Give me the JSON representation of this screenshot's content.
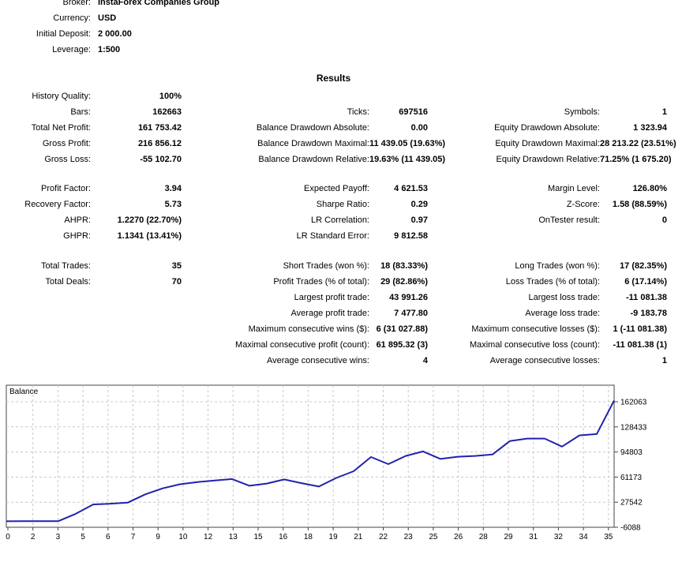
{
  "account": {
    "rows": [
      {
        "label": "Broker:",
        "value": "InstaForex Companies Group"
      },
      {
        "label": "Currency:",
        "value": "USD"
      },
      {
        "label": "Initial Deposit:",
        "value": "2 000.00"
      },
      {
        "label": "Leverage:",
        "value": "1:500"
      }
    ]
  },
  "results_title": "Results",
  "stats": {
    "blocks": [
      {
        "rows": [
          [
            {
              "l": "History Quality:",
              "v": "100%"
            },
            null,
            null
          ],
          [
            {
              "l": "Bars:",
              "v": "162663"
            },
            {
              "l": "Ticks:",
              "v": "697516"
            },
            {
              "l": "Symbols:",
              "v": "1"
            }
          ],
          [
            {
              "l": "Total Net Profit:",
              "v": "161 753.42"
            },
            {
              "l": "Balance Drawdown Absolute:",
              "v": "0.00"
            },
            {
              "l": "Equity Drawdown Absolute:",
              "v": "1 323.94"
            }
          ],
          [
            {
              "l": "Gross Profit:",
              "v": "216 856.12"
            },
            {
              "l": "Balance Drawdown Maximal:",
              "v": "11 439.05 (19.63%)"
            },
            {
              "l": "Equity Drawdown Maximal:",
              "v": "28 213.22 (23.51%)"
            }
          ],
          [
            {
              "l": "Gross Loss:",
              "v": "-55 102.70"
            },
            {
              "l": "Balance Drawdown Relative:",
              "v": "19.63% (11 439.05)"
            },
            {
              "l": "Equity Drawdown Relative:",
              "v": "71.25% (1 675.20)"
            }
          ]
        ]
      },
      {
        "rows": [
          [
            {
              "l": "Profit Factor:",
              "v": "3.94"
            },
            {
              "l": "Expected Payoff:",
              "v": "4 621.53"
            },
            {
              "l": "Margin Level:",
              "v": "126.80%"
            }
          ],
          [
            {
              "l": "Recovery Factor:",
              "v": "5.73"
            },
            {
              "l": "Sharpe Ratio:",
              "v": "0.29"
            },
            {
              "l": "Z-Score:",
              "v": "1.58 (88.59%)"
            }
          ],
          [
            {
              "l": "AHPR:",
              "v": "1.2270 (22.70%)"
            },
            {
              "l": "LR Correlation:",
              "v": "0.97"
            },
            {
              "l": "OnTester result:",
              "v": "0"
            }
          ],
          [
            {
              "l": "GHPR:",
              "v": "1.1341 (13.41%)"
            },
            {
              "l": "LR Standard Error:",
              "v": "9 812.58"
            },
            null
          ]
        ]
      },
      {
        "rows": [
          [
            {
              "l": "Total Trades:",
              "v": "35"
            },
            {
              "l": "Short Trades (won %):",
              "v": "18 (83.33%)"
            },
            {
              "l": "Long Trades (won %):",
              "v": "17 (82.35%)"
            }
          ],
          [
            {
              "l": "Total Deals:",
              "v": "70"
            },
            {
              "l": "Profit Trades (% of total):",
              "v": "29 (82.86%)"
            },
            {
              "l": "Loss Trades (% of total):",
              "v": "6 (17.14%)"
            }
          ],
          [
            null,
            {
              "l": "Largest profit trade:",
              "v": "43 991.26"
            },
            {
              "l": "Largest loss trade:",
              "v": "-11 081.38"
            }
          ],
          [
            null,
            {
              "l": "Average profit trade:",
              "v": "7 477.80"
            },
            {
              "l": "Average loss trade:",
              "v": "-9 183.78"
            }
          ],
          [
            null,
            {
              "l": "Maximum consecutive wins ($):",
              "v": "6 (31 027.88)"
            },
            {
              "l": "Maximum consecutive losses ($):",
              "v": "1 (-11 081.38)"
            }
          ],
          [
            null,
            {
              "l": "Maximal consecutive profit (count):",
              "v": "61 895.32 (3)"
            },
            {
              "l": "Maximal consecutive loss (count):",
              "v": "-11 081.38 (1)"
            }
          ],
          [
            null,
            {
              "l": "Average consecutive wins:",
              "v": "4"
            },
            {
              "l": "Average consecutive losses:",
              "v": "1"
            }
          ]
        ]
      }
    ]
  },
  "chart_data": {
    "type": "line",
    "title": "Balance",
    "xlabel": "",
    "ylabel": "",
    "legend_position": "top-left-inside",
    "grid": "dashed",
    "xlim": [
      0,
      35
    ],
    "ylim": [
      -6088,
      184280
    ],
    "x": [
      0,
      1,
      2,
      3,
      4,
      5,
      6,
      7,
      8,
      9,
      10,
      11,
      12,
      13,
      14,
      15,
      16,
      17,
      18,
      19,
      20,
      21,
      22,
      23,
      24,
      25,
      26,
      27,
      28,
      29,
      30,
      31,
      32,
      33,
      34,
      35
    ],
    "series": [
      {
        "name": "Balance",
        "values": [
          2000,
          2050,
          2100,
          2200,
          12000,
          24500,
          25500,
          27000,
          38000,
          46000,
          51500,
          54500,
          56500,
          58500,
          49500,
          52500,
          58000,
          53000,
          48500,
          60000,
          69000,
          88000,
          78500,
          89500,
          95500,
          85500,
          88500,
          89500,
          91500,
          109500,
          112800,
          112800,
          102000,
          117000,
          118800,
          163753
        ]
      }
    ],
    "x_tick_labels": [
      "0",
      "2",
      "3",
      "5",
      "6",
      "7",
      "9",
      "10",
      "12",
      "13",
      "15",
      "16",
      "18",
      "19",
      "21",
      "22",
      "23",
      "25",
      "26",
      "28",
      "29",
      "31",
      "32",
      "34",
      "35"
    ],
    "y_ticks": [
      162063,
      128433,
      94803,
      61173,
      27542,
      -6088
    ],
    "colors": {
      "line": "#2222AC",
      "grid": "#C8C8C8",
      "border": "#444444"
    }
  }
}
